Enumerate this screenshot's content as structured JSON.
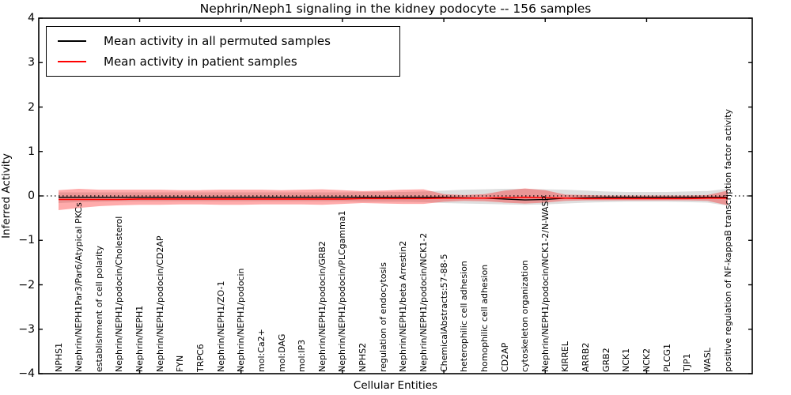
{
  "title": "Nephrin/Neph1 signaling in the kidney podocyte -- 156 samples",
  "axes": {
    "x_label": "Cellular Entities",
    "y_label": "Inferred Activity",
    "y_ticks": [
      {
        "value": 4,
        "label": "4"
      },
      {
        "value": 3,
        "label": "3"
      },
      {
        "value": 2,
        "label": "2"
      },
      {
        "value": 1,
        "label": "1"
      },
      {
        "value": 0,
        "label": "0"
      },
      {
        "value": -1,
        "label": "−1"
      },
      {
        "value": -2,
        "label": "−2"
      },
      {
        "value": -3,
        "label": "−3"
      },
      {
        "value": -4,
        "label": "−4"
      }
    ]
  },
  "legend": {
    "entries": [
      {
        "label": "Mean activity in all permuted samples",
        "color": "#000000"
      },
      {
        "label": "Mean activity in patient samples",
        "color": "#ff0000"
      }
    ]
  },
  "chart_data": {
    "type": "line",
    "title": "Nephrin/Neph1 signaling in the kidney podocyte -- 156 samples",
    "xlabel": "Cellular Entities",
    "ylabel": "Inferred Activity",
    "ylim": [
      -4,
      4
    ],
    "grid": false,
    "legend_position": "upper left",
    "zero_line": 0,
    "x_major_tick_indices": [
      4,
      9,
      14,
      19,
      24,
      29
    ],
    "categories": [
      "NPHS1",
      "Nephrin/NEPH1Par3/Par6/Atypical PKCs",
      "establishment of cell polarity",
      "Nephrin/NEPH1/podocin/Cholesterol",
      "Nephrin/NEPH1",
      "Nephrin/NEPH1/podocin/CD2AP",
      "FYN",
      "TRPC6",
      "Nephrin/NEPH1/ZO-1",
      "Nephrin/NEPH1/podocin",
      "mol:Ca2+",
      "mol:DAG",
      "mol:IP3",
      "Nephrin/NEPH1/podocin/GRB2",
      "Nephrin/NEPH1/podocin/PLCgamma1",
      "NPHS2",
      "regulation of endocytosis",
      "Nephrin/NEPH1/beta Arrestin2",
      "Nephrin/NEPH1/podocin/NCK1-2",
      "ChemicalAbstracts:57-88-5",
      "heterophilic cell adhesion",
      "homophilic cell adhesion",
      "CD2AP",
      "cytoskeleton organization",
      "Nephrin/NEPH1/podocin/NCK1-2/N-WASP",
      "KIRREL",
      "ARRB2",
      "GRB2",
      "NCK1",
      "NCK2",
      "PLCG1",
      "TJP1",
      "WASL",
      "positive regulation of NF-kappaB transcription factor activity"
    ],
    "series": [
      {
        "name": "Mean activity in all permuted samples",
        "color": "#000000",
        "line_width": 1.3,
        "band_color": "rgba(0,0,0,0.13)",
        "values": [
          -0.03,
          -0.03,
          -0.03,
          -0.03,
          -0.03,
          -0.03,
          -0.03,
          -0.03,
          -0.03,
          -0.03,
          -0.03,
          -0.03,
          -0.03,
          -0.03,
          -0.03,
          -0.03,
          -0.03,
          -0.03,
          -0.03,
          -0.03,
          -0.04,
          -0.05,
          -0.07,
          -0.09,
          -0.08,
          -0.05,
          -0.04,
          -0.03,
          -0.03,
          -0.03,
          -0.03,
          -0.03,
          -0.03,
          -0.03
        ],
        "band_upper": [
          0.08,
          0.08,
          0.08,
          0.08,
          0.08,
          0.08,
          0.08,
          0.08,
          0.08,
          0.08,
          0.08,
          0.08,
          0.08,
          0.08,
          0.08,
          0.09,
          0.09,
          0.09,
          0.1,
          0.12,
          0.14,
          0.15,
          0.16,
          0.16,
          0.15,
          0.14,
          0.12,
          0.1,
          0.09,
          0.09,
          0.09,
          0.1,
          0.11,
          0.16
        ],
        "band_lower": [
          -0.16,
          -0.14,
          -0.13,
          -0.12,
          -0.12,
          -0.12,
          -0.12,
          -0.12,
          -0.12,
          -0.12,
          -0.12,
          -0.12,
          -0.12,
          -0.12,
          -0.12,
          -0.13,
          -0.13,
          -0.13,
          -0.14,
          -0.16,
          -0.17,
          -0.18,
          -0.19,
          -0.2,
          -0.19,
          -0.17,
          -0.15,
          -0.14,
          -0.13,
          -0.13,
          -0.13,
          -0.14,
          -0.15,
          -0.22
        ]
      },
      {
        "name": "Mean activity in patient samples",
        "color": "#ff0000",
        "line_width": 1.6,
        "band_color": "rgba(255,0,0,0.33)",
        "values": [
          -0.08,
          -0.08,
          -0.08,
          -0.08,
          -0.07,
          -0.07,
          -0.07,
          -0.07,
          -0.07,
          -0.07,
          -0.07,
          -0.07,
          -0.07,
          -0.07,
          -0.07,
          -0.06,
          -0.06,
          -0.06,
          -0.06,
          -0.05,
          -0.05,
          -0.05,
          -0.04,
          -0.03,
          -0.04,
          -0.05,
          -0.06,
          -0.06,
          -0.06,
          -0.06,
          -0.06,
          -0.06,
          -0.05,
          -0.05
        ],
        "band_upper": [
          0.13,
          0.16,
          0.14,
          0.14,
          0.14,
          0.14,
          0.13,
          0.13,
          0.14,
          0.14,
          0.14,
          0.13,
          0.14,
          0.15,
          0.13,
          0.11,
          0.12,
          0.14,
          0.15,
          0.04,
          0.02,
          0.04,
          0.12,
          0.17,
          0.13,
          0.03,
          0.02,
          0.01,
          0.01,
          0.01,
          0.01,
          0.01,
          0.02,
          0.12
        ],
        "band_lower": [
          -0.32,
          -0.27,
          -0.23,
          -0.21,
          -0.2,
          -0.2,
          -0.19,
          -0.19,
          -0.2,
          -0.2,
          -0.19,
          -0.19,
          -0.19,
          -0.2,
          -0.18,
          -0.16,
          -0.17,
          -0.18,
          -0.18,
          -0.13,
          -0.11,
          -0.12,
          -0.15,
          -0.17,
          -0.15,
          -0.11,
          -0.1,
          -0.1,
          -0.1,
          -0.1,
          -0.1,
          -0.1,
          -0.11,
          -0.21
        ]
      }
    ]
  }
}
